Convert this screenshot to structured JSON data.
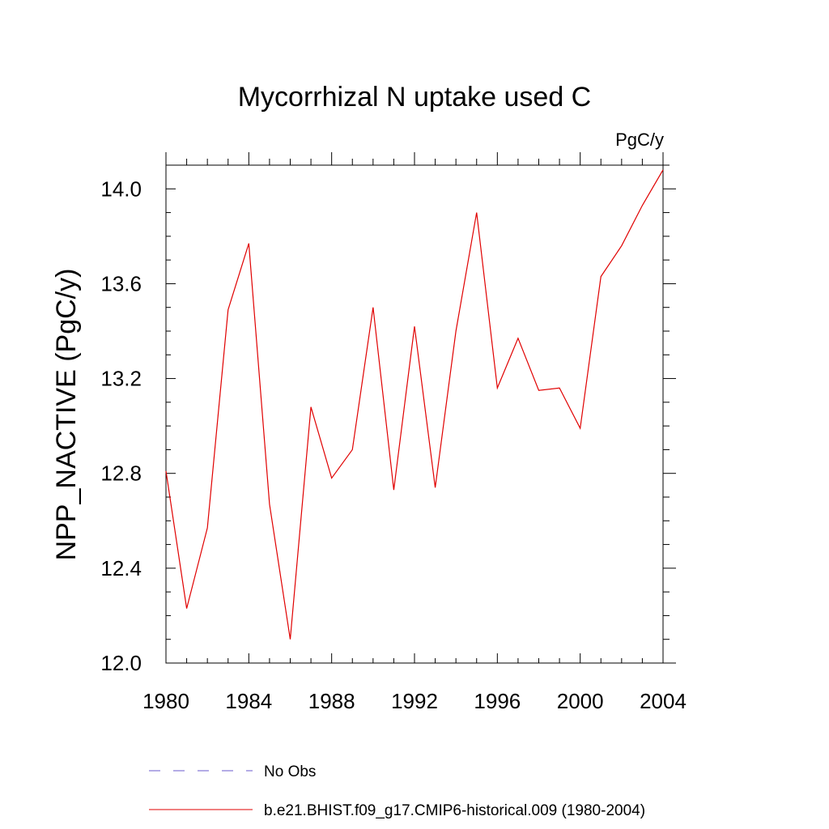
{
  "chart_data": {
    "type": "line",
    "title": "Mycorrhizal N uptake used C",
    "units_label": "PgC/y",
    "ylabel": "NPP_NACTIVE  (PgC/y)",
    "xlabel": "",
    "xlim": [
      1980,
      2004
    ],
    "ylim": [
      12.0,
      14.1
    ],
    "x_ticks": [
      "1980",
      "1984",
      "1988",
      "1992",
      "1996",
      "2000",
      "2004"
    ],
    "y_ticks": [
      "12.0",
      "12.4",
      "12.8",
      "13.2",
      "13.6",
      "14.0"
    ],
    "x": [
      1980,
      1981,
      1982,
      1983,
      1984,
      1985,
      1986,
      1987,
      1988,
      1989,
      1990,
      1991,
      1992,
      1993,
      1994,
      1995,
      1996,
      1997,
      1998,
      1999,
      2000,
      2001,
      2002,
      2003,
      2004
    ],
    "series": [
      {
        "name": "b.e21.BHIST.f09_g17.CMIP6-historical.009 (1980-2004)",
        "color": "#e00000",
        "style": "solid",
        "values": [
          12.81,
          12.23,
          12.57,
          13.49,
          13.77,
          12.67,
          12.1,
          13.08,
          12.78,
          12.9,
          13.5,
          12.73,
          13.42,
          12.74,
          13.4,
          13.9,
          13.16,
          13.37,
          13.15,
          13.16,
          12.99,
          13.63,
          13.76,
          13.93,
          14.08
        ]
      }
    ],
    "legend": {
      "placement": "bottom",
      "entries": [
        {
          "label": "No Obs",
          "color": "#6a5acd",
          "style": "dashed"
        },
        {
          "label": "b.e21.BHIST.f09_g17.CMIP6-historical.009 (1980-2004)",
          "color": "#e00000",
          "style": "solid"
        }
      ]
    },
    "grid": false
  }
}
